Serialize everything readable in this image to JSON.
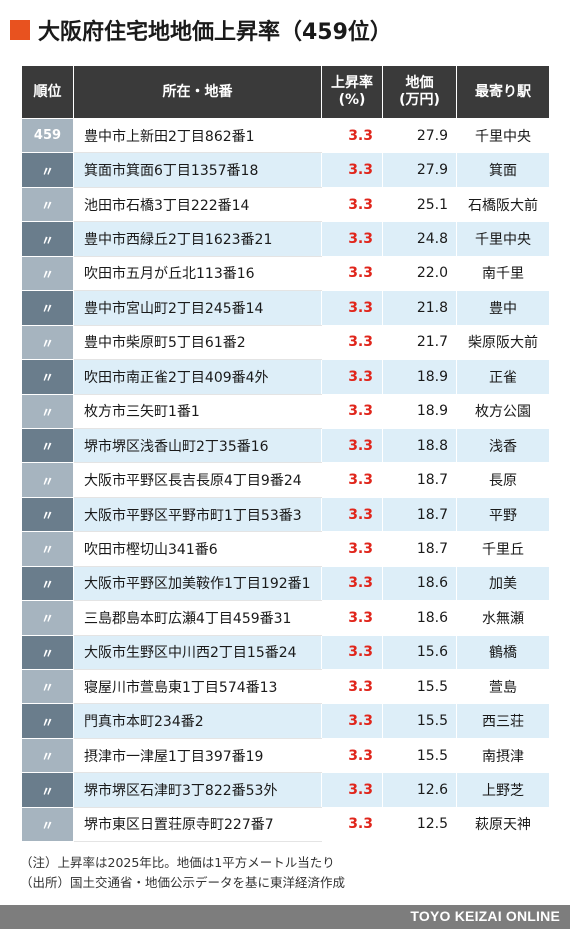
{
  "title": "大阪府住宅地地価上昇率（459位）",
  "colors": {
    "accent": "#e8521f",
    "header_bg": "#3a3a3a",
    "rate_text": "#e0261c",
    "row_alt": "#ddeef8",
    "rank_light": "#a6b4bf",
    "rank_dark": "#6a7d8c",
    "footer_bg": "#7d7d7d"
  },
  "table": {
    "headers": {
      "rank": "順位",
      "address": "所在・地番",
      "rate_line1": "上昇率",
      "rate_line2": "(%)",
      "price_line1": "地価",
      "price_line2": "(万円)",
      "station": "最寄り駅"
    },
    "rows": [
      {
        "rank": "459",
        "address": "豊中市上新田2丁目862番1",
        "rate": "3.3",
        "price": "27.9",
        "station": "千里中央"
      },
      {
        "rank": "〃",
        "address": "箕面市箕面6丁目1357番18",
        "rate": "3.3",
        "price": "27.9",
        "station": "箕面"
      },
      {
        "rank": "〃",
        "address": "池田市石橋3丁目222番14",
        "rate": "3.3",
        "price": "25.1",
        "station": "石橋阪大前"
      },
      {
        "rank": "〃",
        "address": "豊中市西緑丘2丁目1623番21",
        "rate": "3.3",
        "price": "24.8",
        "station": "千里中央"
      },
      {
        "rank": "〃",
        "address": "吹田市五月が丘北113番16",
        "rate": "3.3",
        "price": "22.0",
        "station": "南千里"
      },
      {
        "rank": "〃",
        "address": "豊中市宮山町2丁目245番14",
        "rate": "3.3",
        "price": "21.8",
        "station": "豊中"
      },
      {
        "rank": "〃",
        "address": "豊中市柴原町5丁目61番2",
        "rate": "3.3",
        "price": "21.7",
        "station": "柴原阪大前"
      },
      {
        "rank": "〃",
        "address": "吹田市南正雀2丁目409番4外",
        "rate": "3.3",
        "price": "18.9",
        "station": "正雀"
      },
      {
        "rank": "〃",
        "address": "枚方市三矢町1番1",
        "rate": "3.3",
        "price": "18.9",
        "station": "枚方公園"
      },
      {
        "rank": "〃",
        "address": "堺市堺区浅香山町2丁35番16",
        "rate": "3.3",
        "price": "18.8",
        "station": "浅香"
      },
      {
        "rank": "〃",
        "address": "大阪市平野区長吉長原4丁目9番24",
        "rate": "3.3",
        "price": "18.7",
        "station": "長原"
      },
      {
        "rank": "〃",
        "address": "大阪市平野区平野市町1丁目53番3",
        "rate": "3.3",
        "price": "18.7",
        "station": "平野"
      },
      {
        "rank": "〃",
        "address": "吹田市樫切山341番6",
        "rate": "3.3",
        "price": "18.7",
        "station": "千里丘"
      },
      {
        "rank": "〃",
        "address": "大阪市平野区加美鞍作1丁目192番1",
        "rate": "3.3",
        "price": "18.6",
        "station": "加美"
      },
      {
        "rank": "〃",
        "address": "三島郡島本町広瀬4丁目459番31",
        "rate": "3.3",
        "price": "18.6",
        "station": "水無瀬"
      },
      {
        "rank": "〃",
        "address": "大阪市生野区中川西2丁目15番24",
        "rate": "3.3",
        "price": "15.6",
        "station": "鶴橋"
      },
      {
        "rank": "〃",
        "address": "寝屋川市萱島東1丁目574番13",
        "rate": "3.3",
        "price": "15.5",
        "station": "萱島"
      },
      {
        "rank": "〃",
        "address": "門真市本町234番2",
        "rate": "3.3",
        "price": "15.5",
        "station": "西三荘"
      },
      {
        "rank": "〃",
        "address": "摂津市一津屋1丁目397番19",
        "rate": "3.3",
        "price": "15.5",
        "station": "南摂津"
      },
      {
        "rank": "〃",
        "address": "堺市堺区石津町3丁822番53外",
        "rate": "3.3",
        "price": "12.6",
        "station": "上野芝"
      },
      {
        "rank": "〃",
        "address": "堺市東区日置荘原寺町227番7",
        "rate": "3.3",
        "price": "12.5",
        "station": "萩原天神"
      }
    ]
  },
  "notes": {
    "line1": "（注）上昇率は2025年比。地価は1平方メートル当たり",
    "line2": "（出所）国土交通省・地価公示データを基に東洋経済作成"
  },
  "footer": {
    "brand": "TOYO KEIZAI ONLINE"
  }
}
